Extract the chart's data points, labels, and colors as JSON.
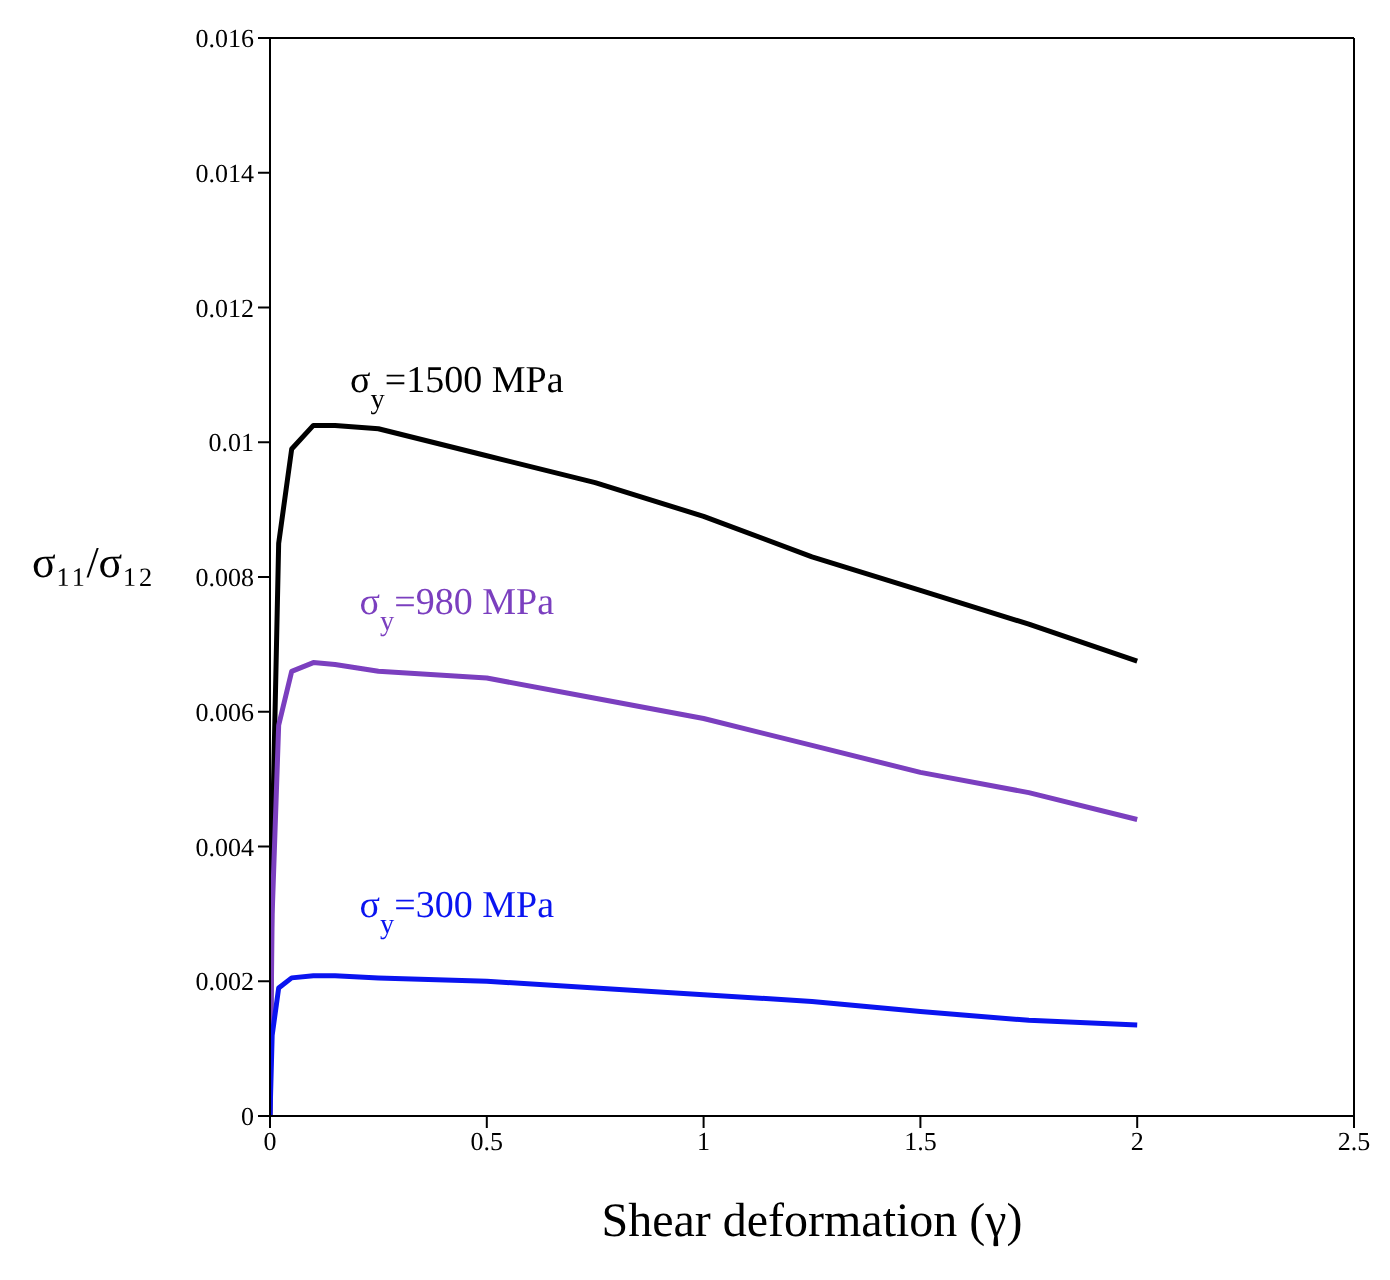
{
  "chart_data": {
    "type": "line",
    "xlabel": "Shear deformation (γ)",
    "ylabel": "σ₁₁/σ₁₂",
    "x": [
      0,
      0.005,
      0.02,
      0.05,
      0.1,
      0.15,
      0.25,
      0.5,
      0.75,
      1,
      1.25,
      1.5,
      1.75,
      2
    ],
    "series": [
      {
        "name": "σ$_{y}$=1500 MPa",
        "color": "#000000",
        "values": [
          0,
          0.004,
          0.0085,
          0.0099,
          0.01025,
          0.01025,
          0.0102,
          0.0098,
          0.0094,
          0.0089,
          0.0083,
          0.0078,
          0.0073,
          0.00675
        ]
      },
      {
        "name": "σ$_{y}$=980 MPa",
        "color": "#7b3fbf",
        "values": [
          0,
          0.003,
          0.0058,
          0.0066,
          0.00673,
          0.0067,
          0.0066,
          0.0065,
          0.0062,
          0.0059,
          0.0055,
          0.0051,
          0.0048,
          0.0044
        ]
      },
      {
        "name": "σ$_{y}$=300 MPa",
        "color": "#0a14f0",
        "values": [
          0,
          0.0012,
          0.0019,
          0.00205,
          0.00208,
          0.00208,
          0.00205,
          0.002,
          0.0019,
          0.0018,
          0.0017,
          0.00155,
          0.00142,
          0.00135
        ]
      }
    ],
    "xlim": [
      0,
      2.5
    ],
    "xticks": [
      0,
      0.5,
      1,
      1.5,
      2,
      2.5
    ],
    "ylim": [
      0,
      0.016
    ],
    "yticks": [
      0,
      0.002,
      0.004,
      0.006,
      0.008,
      0.01,
      0.012,
      0.014,
      0.016
    ],
    "grid": false,
    "legend": false,
    "marker": "none",
    "line_style": "solid"
  }
}
